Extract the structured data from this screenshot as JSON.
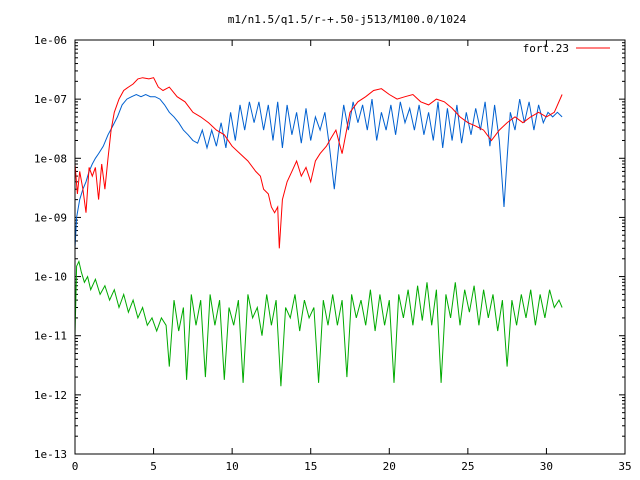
{
  "chart_data": {
    "type": "line",
    "title": "m1/n1.5/q1.5/r-+.50-j513/M100.0/1024",
    "xlabel": "",
    "ylabel": "",
    "xlim": [
      0,
      35
    ],
    "ylim": [
      1e-13,
      1e-06
    ],
    "yscale": "log",
    "grid": false,
    "legend_position": "top-right",
    "x_ticks": [
      0,
      5,
      10,
      15,
      20,
      25,
      30,
      35
    ],
    "x_tick_labels": [
      "0",
      "5",
      "10",
      "15",
      "20",
      "25",
      "30",
      "35"
    ],
    "y_ticks": [
      1e-13,
      1e-12,
      1e-11,
      1e-10,
      1e-09,
      1e-08,
      1e-07,
      1e-06
    ],
    "y_tick_labels": [
      "1e-13",
      "1e-12",
      "1e-11",
      "1e-10",
      "1e-09",
      "1e-08",
      "1e-07",
      "1e-06"
    ],
    "series": [
      {
        "name": "fort.23",
        "color": "#ff0000",
        "x": [
          0,
          0.15,
          0.3,
          0.5,
          0.7,
          0.9,
          1.1,
          1.3,
          1.5,
          1.7,
          1.9,
          2.1,
          2.3,
          2.5,
          2.8,
          3.1,
          3.4,
          3.7,
          4.0,
          4.3,
          4.7,
          5.0,
          5.3,
          5.6,
          6.0,
          6.5,
          7.0,
          7.5,
          8.0,
          8.5,
          9.0,
          9.5,
          10.0,
          10.5,
          11.0,
          11.5,
          11.8,
          12.0,
          12.3,
          12.5,
          12.7,
          12.9,
          13.0,
          13.2,
          13.5,
          13.8,
          14.1,
          14.4,
          14.7,
          15.0,
          15.3,
          15.6,
          16.0,
          16.3,
          16.6,
          17.0,
          17.5,
          18.0,
          18.5,
          19.0,
          19.5,
          20.0,
          20.5,
          21.0,
          21.5,
          22.0,
          22.5,
          23.0,
          23.5,
          24.0,
          24.5,
          25.0,
          25.5,
          26.0,
          26.5,
          27.0,
          27.5,
          28.0,
          28.5,
          29.0,
          29.5,
          30.0,
          30.5,
          31.0
        ],
        "y": [
          8e-09,
          2.5e-09,
          6e-09,
          3e-09,
          1.2e-09,
          7e-09,
          5e-09,
          7e-09,
          2e-09,
          8e-09,
          3e-09,
          1e-08,
          3e-08,
          6e-08,
          1e-07,
          1.4e-07,
          1.6e-07,
          1.8e-07,
          2.2e-07,
          2.3e-07,
          2.2e-07,
          2.3e-07,
          1.6e-07,
          1.4e-07,
          1.6e-07,
          1.1e-07,
          9e-08,
          6e-08,
          5e-08,
          4e-08,
          3e-08,
          2.5e-08,
          1.6e-08,
          1.2e-08,
          9e-09,
          6e-09,
          5e-09,
          3e-09,
          2.5e-09,
          1.5e-09,
          1.2e-09,
          1.5e-09,
          3e-10,
          2e-09,
          4e-09,
          6e-09,
          9e-09,
          5e-09,
          7e-09,
          4e-09,
          9e-09,
          1.2e-08,
          1.6e-08,
          2.2e-08,
          3e-08,
          1.2e-08,
          6e-08,
          9e-08,
          1.1e-07,
          1.4e-07,
          1.5e-07,
          1.2e-07,
          1e-07,
          1.1e-07,
          1.2e-07,
          9e-08,
          8e-08,
          1e-07,
          9e-08,
          7e-08,
          5e-08,
          4e-08,
          3.5e-08,
          3e-08,
          2e-08,
          3e-08,
          4e-08,
          5e-08,
          4e-08,
          5e-08,
          6e-08,
          5e-08,
          6e-08,
          1.2e-07
        ]
      },
      {
        "name": "",
        "color": "#0060d0",
        "x": [
          0,
          0.1,
          0.3,
          0.5,
          0.7,
          0.9,
          1.1,
          1.3,
          1.5,
          1.8,
          2.1,
          2.4,
          2.7,
          3.0,
          3.3,
          3.6,
          3.9,
          4.2,
          4.5,
          4.8,
          5.1,
          5.4,
          5.7,
          6.0,
          6.3,
          6.6,
          6.9,
          7.2,
          7.5,
          7.8,
          8.1,
          8.4,
          8.7,
          9.0,
          9.3,
          9.6,
          9.9,
          10.2,
          10.5,
          10.8,
          11.1,
          11.4,
          11.7,
          12.0,
          12.3,
          12.6,
          12.9,
          13.2,
          13.5,
          13.8,
          14.1,
          14.4,
          14.7,
          15.0,
          15.3,
          15.6,
          15.9,
          16.2,
          16.5,
          16.8,
          17.1,
          17.4,
          17.7,
          18.0,
          18.3,
          18.6,
          18.9,
          19.2,
          19.5,
          19.8,
          20.1,
          20.4,
          20.7,
          21.0,
          21.3,
          21.6,
          21.9,
          22.2,
          22.5,
          22.8,
          23.1,
          23.4,
          23.7,
          24.0,
          24.3,
          24.6,
          24.9,
          25.2,
          25.5,
          25.8,
          26.1,
          26.4,
          26.7,
          27.0,
          27.3,
          27.5,
          27.7,
          28.0,
          28.3,
          28.6,
          28.9,
          29.2,
          29.5,
          29.8,
          30.1,
          30.4,
          30.7,
          31.0
        ],
        "y": [
          3e-10,
          1e-09,
          2e-09,
          3e-09,
          4e-09,
          6e-09,
          8e-09,
          1e-08,
          1.2e-08,
          1.6e-08,
          2.5e-08,
          3.5e-08,
          5e-08,
          8e-08,
          1e-07,
          1.1e-07,
          1.2e-07,
          1.1e-07,
          1.2e-07,
          1.1e-07,
          1.1e-07,
          1e-07,
          8e-08,
          6e-08,
          5e-08,
          4e-08,
          3e-08,
          2.5e-08,
          2e-08,
          1.8e-08,
          3e-08,
          1.5e-08,
          3e-08,
          1.6e-08,
          4e-08,
          1.5e-08,
          6e-08,
          2e-08,
          8e-08,
          3e-08,
          9e-08,
          4e-08,
          9e-08,
          3e-08,
          8e-08,
          2e-08,
          9e-08,
          1.5e-08,
          8e-08,
          2.5e-08,
          6e-08,
          1.8e-08,
          7e-08,
          2e-08,
          5e-08,
          3e-08,
          6e-08,
          1.5e-08,
          3e-09,
          1.8e-08,
          8e-08,
          3e-08,
          9e-08,
          4e-08,
          8e-08,
          3e-08,
          1e-07,
          2e-08,
          6e-08,
          3e-08,
          8e-08,
          2.5e-08,
          9e-08,
          4e-08,
          7e-08,
          3e-08,
          8e-08,
          2.5e-08,
          6e-08,
          2e-08,
          9e-08,
          1.5e-08,
          7e-08,
          2e-08,
          8e-08,
          1.8e-08,
          6e-08,
          2.5e-08,
          7e-08,
          3e-08,
          9e-08,
          1.6e-08,
          8e-08,
          2e-08,
          1.5e-09,
          1e-08,
          6e-08,
          3e-08,
          1e-07,
          4e-08,
          9e-08,
          3e-08,
          8e-08,
          4e-08,
          6e-08,
          5e-08,
          6e-08,
          5e-08
        ]
      },
      {
        "name": "",
        "color": "#00aa00",
        "x": [
          0,
          0.1,
          0.25,
          0.4,
          0.6,
          0.8,
          1.0,
          1.3,
          1.6,
          1.9,
          2.2,
          2.5,
          2.8,
          3.1,
          3.4,
          3.7,
          4.0,
          4.3,
          4.6,
          4.9,
          5.2,
          5.5,
          5.8,
          6.0,
          6.3,
          6.6,
          6.9,
          7.1,
          7.4,
          7.7,
          8.0,
          8.3,
          8.6,
          8.9,
          9.2,
          9.5,
          9.8,
          10.1,
          10.4,
          10.7,
          11.0,
          11.3,
          11.6,
          11.9,
          12.2,
          12.5,
          12.8,
          13.1,
          13.4,
          13.7,
          14.0,
          14.3,
          14.6,
          14.9,
          15.2,
          15.5,
          15.8,
          16.1,
          16.4,
          16.7,
          17.0,
          17.3,
          17.6,
          17.9,
          18.2,
          18.5,
          18.8,
          19.1,
          19.4,
          19.7,
          20.0,
          20.3,
          20.6,
          20.9,
          21.2,
          21.5,
          21.8,
          22.1,
          22.4,
          22.7,
          23.0,
          23.3,
          23.6,
          23.9,
          24.2,
          24.5,
          24.8,
          25.1,
          25.4,
          25.7,
          26.0,
          26.3,
          26.6,
          26.9,
          27.2,
          27.5,
          27.8,
          28.1,
          28.4,
          28.7,
          29.0,
          29.3,
          29.6,
          29.9,
          30.2,
          30.5,
          30.8,
          31.0
        ],
        "y": [
          1e-11,
          1.5e-10,
          1.8e-10,
          1.2e-10,
          8e-11,
          1e-10,
          6e-11,
          9e-11,
          5e-11,
          7e-11,
          4e-11,
          6e-11,
          3e-11,
          5e-11,
          2.5e-11,
          4e-11,
          2e-11,
          3e-11,
          1.5e-11,
          2e-11,
          1.2e-11,
          2e-11,
          1.5e-11,
          3e-12,
          4e-11,
          1.2e-11,
          3e-11,
          1.8e-12,
          5e-11,
          1.5e-11,
          4e-11,
          2e-12,
          5e-11,
          1.5e-11,
          4e-11,
          1.8e-12,
          3e-11,
          1.5e-11,
          4e-11,
          1.6e-12,
          5e-11,
          2e-11,
          3e-11,
          1e-11,
          5e-11,
          1.5e-11,
          4e-11,
          1.4e-12,
          3e-11,
          2e-11,
          5e-11,
          1.2e-11,
          4e-11,
          2e-11,
          3e-11,
          1.6e-12,
          4e-11,
          1.5e-11,
          5e-11,
          1.5e-11,
          4e-11,
          2e-12,
          5e-11,
          2e-11,
          4e-11,
          1.5e-11,
          6e-11,
          1.2e-11,
          5e-11,
          1.5e-11,
          4e-11,
          1.6e-12,
          5e-11,
          2e-11,
          6e-11,
          1.5e-11,
          7e-11,
          1.8e-11,
          8e-11,
          1.5e-11,
          6e-11,
          1.6e-12,
          5e-11,
          2e-11,
          8e-11,
          1.5e-11,
          6e-11,
          2.5e-11,
          7e-11,
          1.5e-11,
          6e-11,
          2e-11,
          5e-11,
          1.2e-11,
          4e-11,
          3e-12,
          4e-11,
          1.5e-11,
          5e-11,
          2e-11,
          6e-11,
          1.5e-11,
          5e-11,
          2e-11,
          6e-11,
          3e-11,
          4e-11,
          3e-11
        ]
      }
    ]
  }
}
